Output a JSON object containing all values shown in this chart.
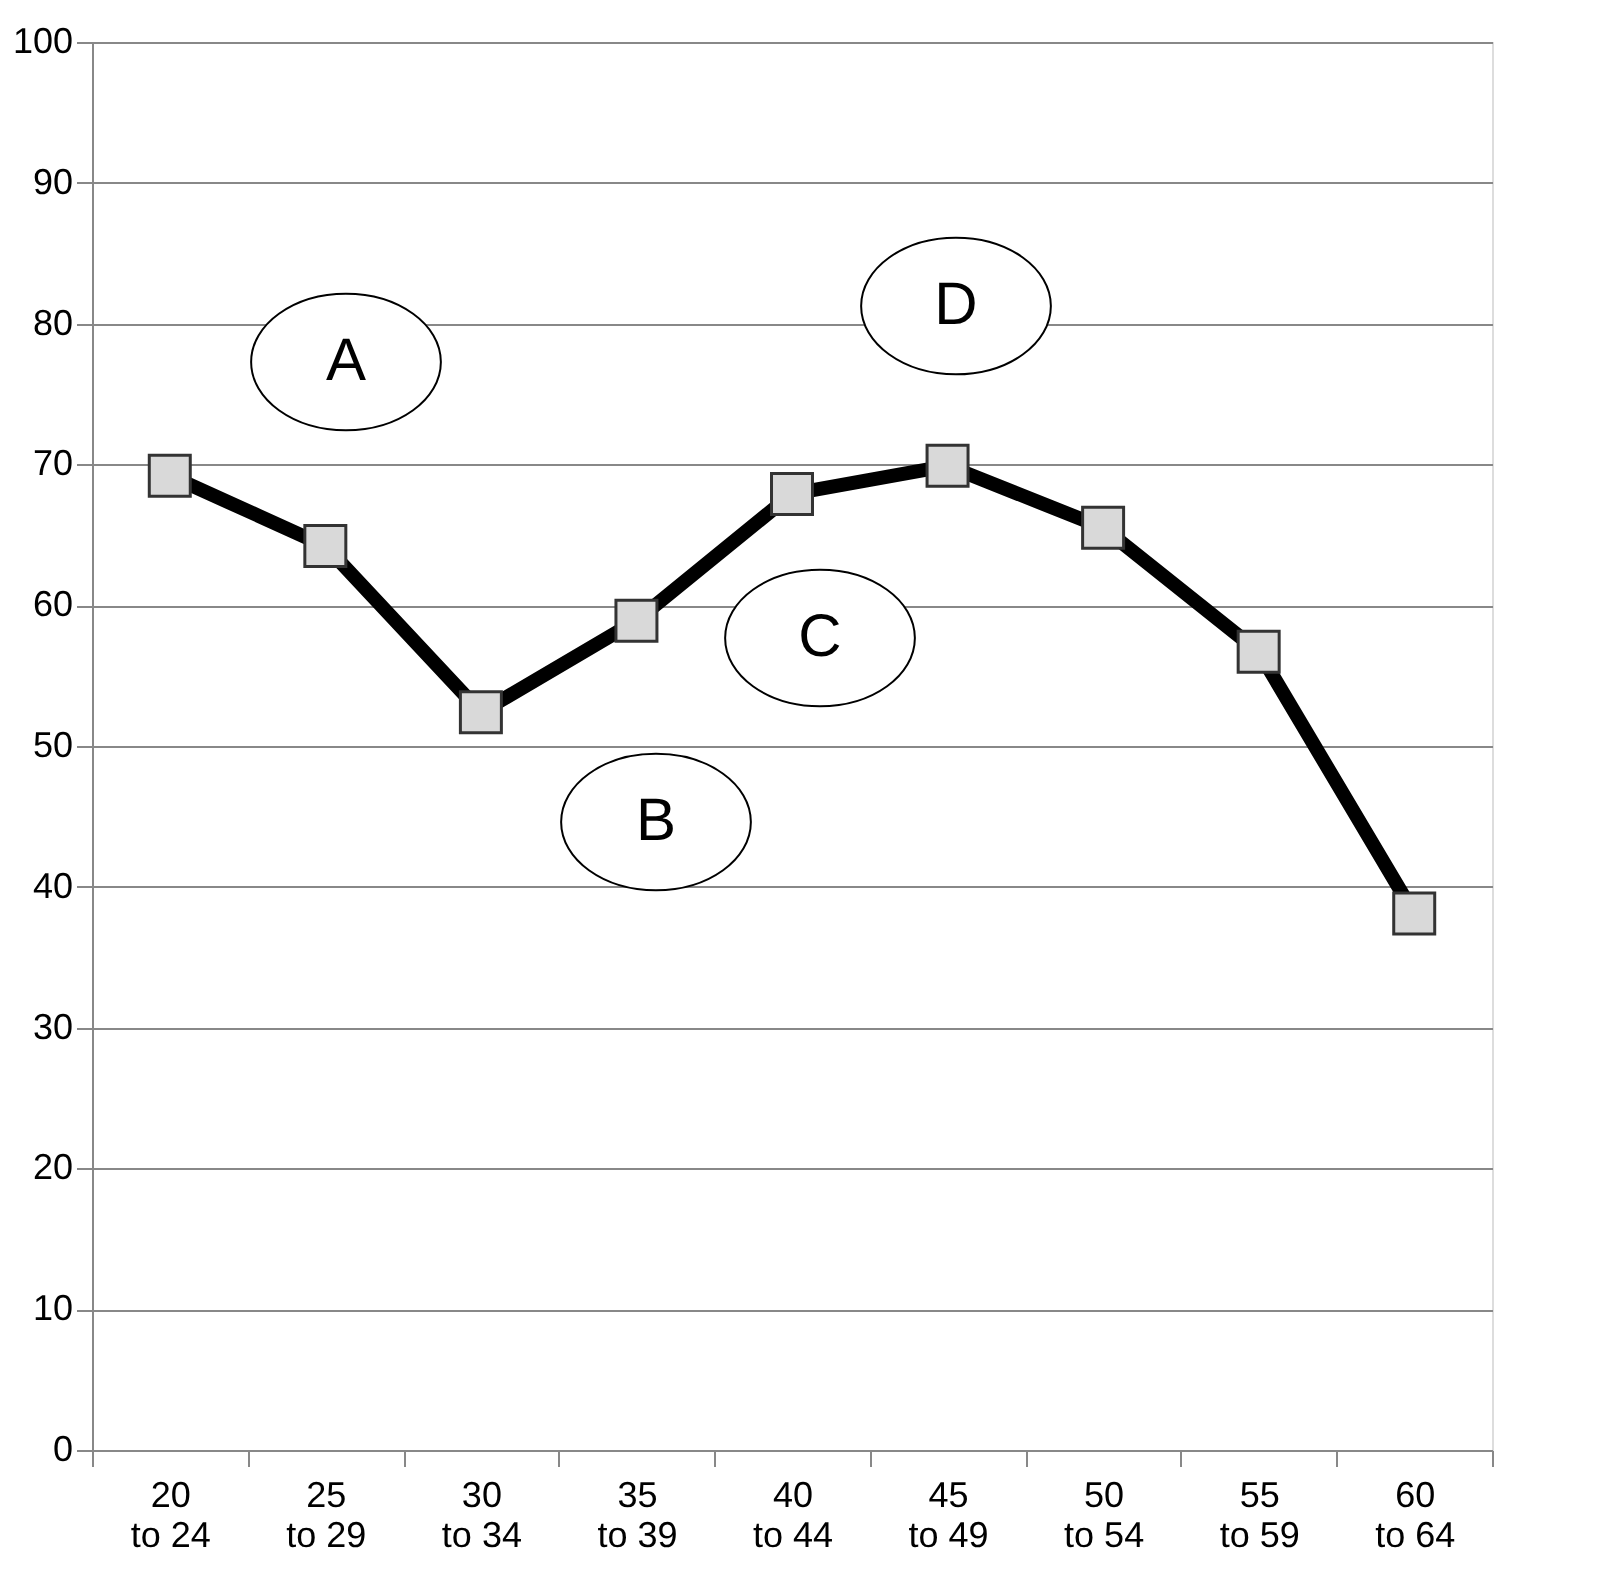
{
  "chart_data": {
    "type": "line",
    "categories": [
      "20\nto 24",
      "25\nto 29",
      "30\nto 34",
      "35\nto 39",
      "40\nto 44",
      "45\nto 49",
      "50\nto 54",
      "55\nto 59",
      "60\nto 64"
    ],
    "series": [
      {
        "color": "#000000",
        "values": [
          69.2,
          64.2,
          52.4,
          58.9,
          67.9,
          69.9,
          65.5,
          56.7,
          38.1
        ]
      }
    ],
    "ylim": [
      0,
      100
    ],
    "yticks": [
      0,
      10,
      20,
      30,
      40,
      50,
      60,
      70,
      80,
      90,
      100
    ],
    "grid": "y",
    "marker": "square",
    "line_style": "solid",
    "annotations": [
      "A",
      "B",
      "C",
      "D"
    ]
  }
}
